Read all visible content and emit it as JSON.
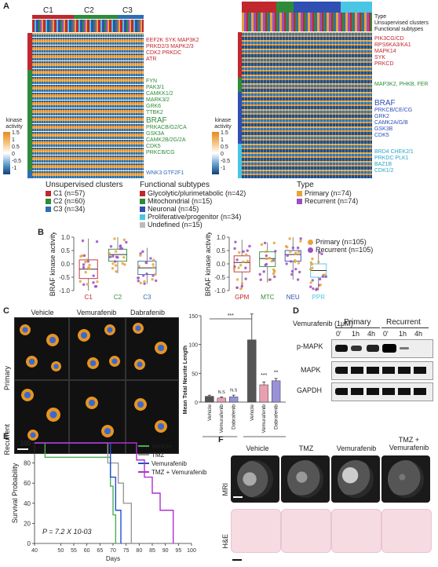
{
  "panels": {
    "a": "A",
    "b": "B",
    "c": "C",
    "d": "D",
    "e": "E",
    "f": "F"
  },
  "panelA": {
    "left_clusters": [
      "C1",
      "C2",
      "C3"
    ],
    "left_genes_red": [
      "EEF2K SYK MAP3K2",
      "PRKD2/3 MAPK2/3",
      "CDK2 PRKDC",
      "ATR"
    ],
    "left_genes_green": [
      "FYN",
      "PAK3/1",
      "CAMKK1/2",
      "MARK3/2",
      "GRK6",
      "TTBK2",
      "BRAF",
      "PRKACB/G2/CA",
      "GSK3A",
      "CAMK2B/2G/2A",
      "CDK5",
      "PRKCB/CG"
    ],
    "left_genes_blue": [
      "WNK3 GTF2F1"
    ],
    "right_types": [
      "GPM",
      "MTC",
      "NEU",
      "PPR"
    ],
    "row_labels": [
      "Type",
      "Unsupervised clusters",
      "Functional subtypes"
    ],
    "right_genes_red": [
      "PIK3CG/CD",
      "RPS6KA3/KA1",
      "MAPK14",
      "SYK",
      "PRKCD"
    ],
    "right_genes_green": [
      "MAP3K2, PHKB, FER"
    ],
    "right_genes_blue": [
      "BRAF",
      "PRKCB/CE/CG",
      "GRK2",
      "CAMK2A/G/B",
      "GSK3B",
      "CDK5"
    ],
    "right_genes_cyan": [
      "BRD4 CHEK2/1",
      "PRKDC PLK1",
      "BAZ1B",
      "CDK1/2"
    ],
    "colorbar": {
      "title": "kinase activity",
      "ticks": [
        "1.5",
        "1",
        "0.5",
        "0",
        "-0.5",
        "-1"
      ]
    },
    "legend": {
      "clusters_title": "Unsupervised clusters",
      "clusters": [
        {
          "label": "C1 (n=57)",
          "color": "#c0282d"
        },
        {
          "label": "C2 (n=60)",
          "color": "#2e8b3a"
        },
        {
          "label": "C3 (n=34)",
          "color": "#2f6db3"
        }
      ],
      "subtypes_title": "Functional subtypes",
      "subtypes": [
        {
          "label": "Glycolytic/plurimetabolic (n=42)",
          "color": "#c0282d"
        },
        {
          "label": "Mitochondrial (n=15)",
          "color": "#2e8b3a"
        },
        {
          "label": "Neuronal (n=45)",
          "color": "#2f4fb3"
        },
        {
          "label": "Proliferative/progenitor (n=34)",
          "color": "#49c6e5"
        },
        {
          "label": "Undefined (n=15)",
          "color": "#bbbbbb"
        }
      ],
      "type_title": "Type",
      "types": [
        {
          "label": "Primary (n=74)",
          "color": "#e8a33a"
        },
        {
          "label": "Recurrent (n=74)",
          "color": "#9b4fc0"
        }
      ]
    },
    "colors": {
      "c1": "#c0282d",
      "c2": "#2e8b3a",
      "c3": "#2f6db3",
      "gpm": "#c0282d",
      "mtc": "#2e8b3a",
      "neu": "#2f4fb3",
      "ppr": "#49c6e5"
    }
  },
  "panelB": {
    "legend": [
      {
        "label": "Primary (n=105)",
        "color": "#e8a33a"
      },
      {
        "label": "Recurrent (n=105)",
        "color": "#9b4fc0"
      }
    ],
    "chart_data": [
      {
        "type": "box",
        "ylabel": "BRAF kinase activity",
        "categories": [
          "C1",
          "C2",
          "C3"
        ],
        "category_colors": [
          "#c0282d",
          "#2e8b3a",
          "#2f6db3"
        ],
        "ylim": [
          -1.0,
          1.0
        ],
        "yticks": [
          "1.0",
          "0.5",
          "0.0",
          "-0.5",
          "-1.0"
        ],
        "medians": [
          -0.2,
          0.35,
          -0.15
        ],
        "q1": [
          -0.55,
          0.1,
          -0.4
        ],
        "q3": [
          0.15,
          0.55,
          0.1
        ],
        "whisker_low": [
          -1.0,
          -0.35,
          -0.75
        ],
        "whisker_high": [
          0.95,
          1.0,
          0.6
        ]
      },
      {
        "type": "box",
        "ylabel": "BRAF kinase activity",
        "categories": [
          "GPM",
          "MTC",
          "NEU",
          "PPR"
        ],
        "category_colors": [
          "#c0282d",
          "#2e8b3a",
          "#2f4fb3",
          "#49c6e5"
        ],
        "ylim": [
          -1.0,
          1.0
        ],
        "yticks": [
          "1.0",
          "0.5",
          "0.0",
          "-0.5",
          "-1.0"
        ],
        "medians": [
          0.05,
          0.2,
          0.35,
          -0.25
        ],
        "q1": [
          -0.3,
          -0.1,
          0.1,
          -0.5
        ],
        "q3": [
          0.3,
          0.45,
          0.5,
          0.0
        ],
        "whisker_low": [
          -0.95,
          -0.7,
          -0.6,
          -1.0
        ],
        "whisker_high": [
          0.9,
          0.8,
          1.0,
          0.5
        ]
      }
    ]
  },
  "panelC": {
    "cols": [
      "Vehicle",
      "Vemurafenib",
      "Dabrafenib"
    ],
    "rows": [
      "Primary",
      "Recurrent"
    ],
    "chart_data": {
      "type": "bar",
      "ylabel": "Mean Total Neurite Length",
      "categories": [
        "Vehicle",
        "Vemurafenib",
        "Dabrafenib",
        "Vehicle",
        "Vemurafenib",
        "Dabrafenib"
      ],
      "groups": [
        "Primary",
        "Recurrent"
      ],
      "values": [
        10,
        7,
        9,
        108,
        30,
        37
      ],
      "errors": [
        2,
        2,
        3,
        45,
        5,
        4
      ],
      "colors": [
        "#555555",
        "#e8a0b0",
        "#9a92d8",
        "#555555",
        "#e8a0b0",
        "#9a92d8"
      ],
      "ylim": [
        0,
        150
      ],
      "yticks": [
        "150",
        "100",
        "50",
        "0"
      ],
      "annotations": [
        "N.S",
        "N.S",
        "***",
        "**",
        "***"
      ]
    }
  },
  "panelD": {
    "treatment": "Vemurafenib (1μM)",
    "groups": [
      "Primary",
      "Recurrent"
    ],
    "times": [
      "0'",
      "1h",
      "4h",
      "0'",
      "1h",
      "4h"
    ],
    "bands": [
      "p-MAPK",
      "MAPK",
      "GAPDH"
    ]
  },
  "panelE": {
    "chart_data": {
      "type": "line",
      "xlabel": "Days",
      "ylabel": "Survival Probability",
      "xlim": [
        40,
        100
      ],
      "xticks": [
        "40",
        "50",
        "55",
        "60",
        "65",
        "70",
        "75",
        "80",
        "85",
        "90",
        "95",
        "100"
      ],
      "ylim": [
        0,
        100
      ],
      "yticks": [
        "100",
        "80",
        "60",
        "40",
        "20",
        "0"
      ],
      "pvalue": "P = 7.2 X 10-03",
      "series": [
        {
          "name": "Vehicle",
          "color": "#4caf50",
          "x": [
            40,
            44,
            44,
            69,
            69,
            70,
            70,
            71,
            71
          ],
          "y": [
            100,
            100,
            85.7,
            85.7,
            57,
            57,
            28.5,
            28.5,
            0
          ]
        },
        {
          "name": "TMZ",
          "color": "#999999",
          "x": [
            40,
            68,
            68,
            72,
            72,
            74,
            74,
            77,
            77
          ],
          "y": [
            100,
            100,
            80,
            80,
            60,
            60,
            40,
            40,
            0
          ]
        },
        {
          "name": "Vemurafenib",
          "color": "#1f4fd0",
          "x": [
            40,
            69,
            69,
            71,
            71,
            73,
            73
          ],
          "y": [
            100,
            100,
            66,
            66,
            33,
            33,
            0
          ]
        },
        {
          "name": "TMZ + Vemurafenib",
          "color": "#b02fd0",
          "x": [
            40,
            79,
            79,
            82,
            82,
            85,
            85,
            88,
            88,
            93,
            93
          ],
          "y": [
            100,
            100,
            83,
            83,
            66,
            66,
            50,
            50,
            33,
            33,
            0
          ]
        }
      ]
    }
  },
  "panelF": {
    "cols": [
      "Vehicle",
      "TMZ",
      "Vemurafenib",
      "TMZ +\nVemurafenib"
    ],
    "rows": [
      "MRI",
      "H&E"
    ]
  }
}
